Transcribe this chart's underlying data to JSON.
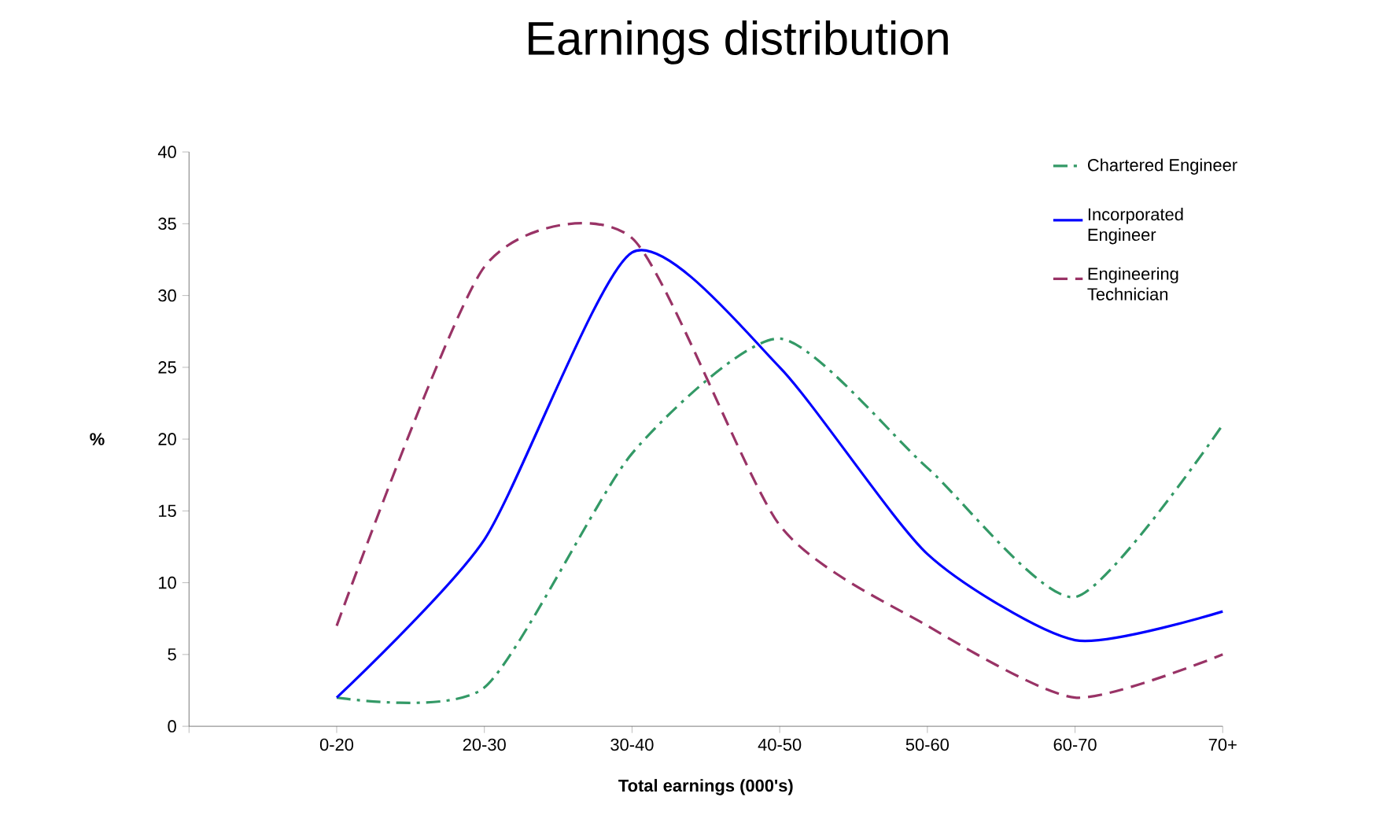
{
  "chart_data": {
    "type": "line",
    "title": "Earnings distribution",
    "xlabel": "Total earnings (000's)",
    "ylabel": "%",
    "categories": [
      null,
      "0-20",
      "20-30",
      "30-40",
      "40-50",
      "50-60",
      "60-70",
      "70+"
    ],
    "series": [
      {
        "name": "Chartered Engineer",
        "color": "#339966",
        "line_style": "dashdot",
        "values": [
          null,
          2,
          2.7,
          19,
          27,
          18,
          9,
          21
        ]
      },
      {
        "name": "Incorporated Engineer",
        "color": "#0000ff",
        "line_style": "solid",
        "values": [
          null,
          2,
          13,
          33,
          25,
          12,
          6,
          8
        ]
      },
      {
        "name": "Engineering Technician",
        "color": "#993366",
        "line_style": "dashed",
        "values": [
          null,
          7,
          32,
          34,
          14,
          7,
          2,
          5
        ]
      }
    ],
    "ylim": [
      0,
      40
    ],
    "yticks": [
      0,
      5,
      10,
      15,
      20,
      25,
      30,
      35,
      40
    ],
    "legend": "top right",
    "marker": "none",
    "grid": false
  }
}
